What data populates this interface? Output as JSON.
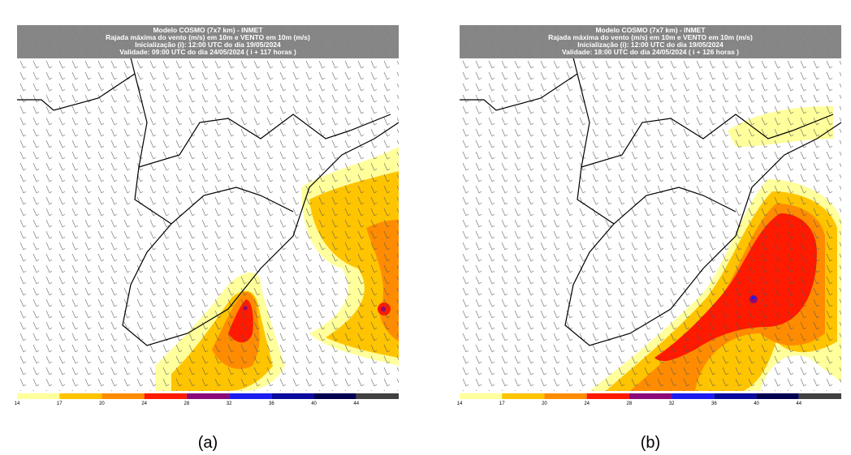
{
  "panels": [
    {
      "header": [
        "Modelo COSMO (7x7 km) - INMET",
        "Rajada máxima do vento (m/s) em 10m e VENTO em 10m (m/s)",
        "Inicialização (i): 12:00 UTC do dia 19/05/2024",
        "Validade: 09:00 UTC do dia 24/05/2024 ( i + 117 horas )"
      ],
      "caption": "(a)"
    },
    {
      "header": [
        "Modelo COSMO (7x7 km) - INMET",
        "Rajada máxima do vento (m/s) em 10m e VENTO em 10m (m/s)",
        "Inicialização (i): 12:00 UTC do dia 19/05/2024",
        "Validade: 18:00 UTC do dia 24/05/2024 ( i + 126 horas )"
      ],
      "caption": "(b)"
    }
  ],
  "colorbar": {
    "ticks": [
      14,
      17,
      20,
      24,
      28,
      32,
      36,
      40,
      44
    ],
    "colors": [
      "#ffff9c",
      "#ffc400",
      "#ff8c00",
      "#ff1a00",
      "#8b0a7a",
      "#1c1cf0",
      "#0a0a9e",
      "#000050",
      "#404040"
    ]
  }
}
